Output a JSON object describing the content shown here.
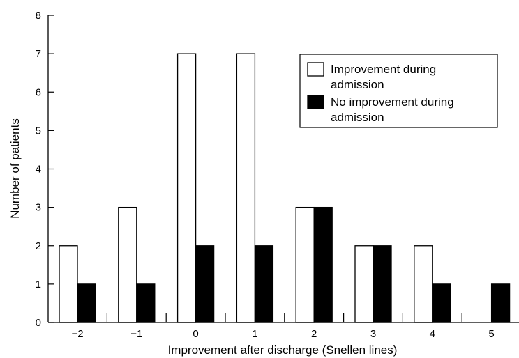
{
  "chart_data": {
    "type": "bar",
    "xlabel": "Improvement after discharge (Snellen lines)",
    "ylabel": "Number of patients",
    "ylim": [
      0,
      8
    ],
    "yticks": [
      "0",
      "1",
      "2",
      "3",
      "4",
      "5",
      "6",
      "7",
      "8"
    ],
    "categories": [
      "−2",
      "−1",
      "0",
      "1",
      "2",
      "3",
      "4",
      "5"
    ],
    "grid": false,
    "legend_position": "top-right",
    "series": [
      {
        "name": "Improvement during admission",
        "name_lines": [
          "Improvement during",
          "admission"
        ],
        "fill": "#ffffff",
        "values": [
          2,
          3,
          7,
          7,
          3,
          2,
          2,
          0
        ]
      },
      {
        "name": "No improvement during admission",
        "name_lines": [
          "No improvement during",
          "admission"
        ],
        "fill": "#000000",
        "values": [
          1,
          1,
          2,
          2,
          3,
          2,
          1,
          1
        ]
      }
    ]
  }
}
